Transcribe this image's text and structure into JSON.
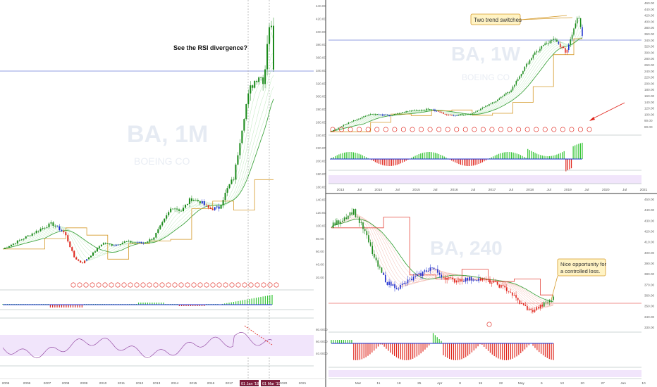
{
  "panels": {
    "monthly": {
      "watermark_symbol": "BA, 1M",
      "watermark_name": "BOEING CO",
      "annotation": "See the RSI divergence?",
      "x_ticks": [
        "2005",
        "2006",
        "2007",
        "2008",
        "2009",
        "2010",
        "2011",
        "2012",
        "2013",
        "2014",
        "2015",
        "2016",
        "2017",
        "2018",
        "2020",
        "2021"
      ],
      "y_ticks": [
        "440.00",
        "420.00",
        "400.00",
        "380.00",
        "360.00",
        "340.00",
        "320.00",
        "300.00",
        "280.00",
        "260.00",
        "240.00",
        "220.00",
        "200.00",
        "180.00",
        "160.00",
        "140.00",
        "120.00",
        "100.00",
        "80.00",
        "60.00",
        "40.00",
        "20.00"
      ],
      "date_badges": [
        "01 Jan '18",
        "01 Mar '19"
      ],
      "rsi_ticks": [
        "80.0000",
        "60.0000",
        "40.0000"
      ]
    },
    "weekly": {
      "watermark_symbol": "BA, 1W",
      "watermark_name": "BOEING CO",
      "annotation": "Two trend switches",
      "x_ticks": [
        "2013",
        "Jul",
        "2014",
        "Jul",
        "2015",
        "Jul",
        "2016",
        "Jul",
        "2017",
        "Jul",
        "2018",
        "Jul",
        "2019",
        "Jul",
        "2020",
        "Jul",
        "2021"
      ],
      "y_ticks": [
        "460.00",
        "440.00",
        "420.00",
        "400.00",
        "380.00",
        "360.00",
        "340.00",
        "320.00",
        "300.00",
        "280.00",
        "260.00",
        "240.00",
        "220.00",
        "200.00",
        "180.00",
        "160.00",
        "140.00",
        "120.00",
        "100.00",
        "90.00",
        "80.00"
      ]
    },
    "h4": {
      "watermark_symbol": "BA, 240",
      "annotation": "Nice opportunity for a controlled loss.",
      "annotation_line1": "Nice opportunity for",
      "annotation_line2": "a controlled loss.",
      "x_ticks": [
        "Mar",
        "11",
        "18",
        "25",
        "Apr",
        "8",
        "15",
        "22",
        "May",
        "6",
        "13",
        "20",
        "27",
        "Jun",
        "10"
      ],
      "y_ticks": [
        "450.00",
        "440.00",
        "430.00",
        "420.00",
        "410.00",
        "400.00",
        "390.00",
        "380.00",
        "370.00",
        "360.00",
        "350.00",
        "340.00",
        "330.00"
      ]
    }
  },
  "colors": {
    "bull": "#1b8a1b",
    "bear": "#e0241b",
    "blue": "#1a2ccf",
    "ma_green": "#2e9b2e",
    "ma_orange": "#d59a2a",
    "ma_red": "#e4443a",
    "note_fill": "#fff3c4",
    "note_border": "#d59a2a",
    "rsi_band": "#f1e5fb"
  },
  "chart_data": [
    {
      "type": "candlestick",
      "title": "BA, 1M",
      "x_range": [
        "2005",
        "2021"
      ],
      "ylim": [
        20,
        450
      ],
      "series": [
        {
          "name": "BA, 1M",
          "values": [
            [
              2005.0,
              62
            ],
            [
              2006.0,
              78
            ],
            [
              2007.0,
              95
            ],
            [
              2007.6,
              104
            ],
            [
              2008.3,
              88
            ],
            [
              2008.8,
              48
            ],
            [
              2009.2,
              38
            ],
            [
              2009.8,
              55
            ],
            [
              2010.3,
              72
            ],
            [
              2010.9,
              68
            ],
            [
              2011.5,
              74
            ],
            [
              2012.0,
              73
            ],
            [
              2012.5,
              72
            ],
            [
              2013.0,
              80
            ],
            [
              2013.5,
              105
            ],
            [
              2014.0,
              132
            ],
            [
              2014.5,
              125
            ],
            [
              2015.0,
              145
            ],
            [
              2015.5,
              140
            ],
            [
              2016.0,
              128
            ],
            [
              2016.5,
              130
            ],
            [
              2017.0,
              165
            ],
            [
              2017.3,
              180
            ],
            [
              2017.6,
              240
            ],
            [
              2017.9,
              295
            ],
            [
              2018.2,
              330
            ],
            [
              2018.6,
              350
            ],
            [
              2018.9,
              340
            ],
            [
              2019.1,
              420
            ],
            [
              2019.25,
              445
            ],
            [
              2019.4,
              365
            ]
          ]
        }
      ]
    },
    {
      "type": "candlestick",
      "title": "BA, 1W",
      "x_range": [
        "2013",
        "2021"
      ],
      "ylim": [
        80,
        460
      ],
      "series": [
        {
          "name": "BA, 1W",
          "values": [
            [
              2013.0,
              75
            ],
            [
              2013.5,
              105
            ],
            [
              2014.0,
              130
            ],
            [
              2014.5,
              125
            ],
            [
              2015.0,
              140
            ],
            [
              2015.5,
              145
            ],
            [
              2016.0,
              125
            ],
            [
              2016.5,
              130
            ],
            [
              2017.0,
              160
            ],
            [
              2017.5,
              200
            ],
            [
              2018.0,
              300
            ],
            [
              2018.3,
              340
            ],
            [
              2018.6,
              360
            ],
            [
              2018.9,
              320
            ],
            [
              2019.1,
              400
            ],
            [
              2019.2,
              440
            ],
            [
              2019.3,
              375
            ]
          ]
        }
      ]
    },
    {
      "type": "candlestick",
      "title": "BA, 240",
      "x_range": [
        "Mar",
        "Jun"
      ],
      "ylim": [
        330,
        450
      ],
      "series": [
        {
          "name": "BA, 240",
          "values": [
            [
              0,
              425
            ],
            [
              3,
              432
            ],
            [
              6,
              440
            ],
            [
              9,
              420
            ],
            [
              12,
              390
            ],
            [
              15,
              370
            ],
            [
              18,
              365
            ],
            [
              21,
              372
            ],
            [
              24,
              378
            ],
            [
              27,
              385
            ],
            [
              30,
              376
            ],
            [
              33,
              372
            ],
            [
              36,
              373
            ],
            [
              39,
              374
            ],
            [
              42,
              372
            ],
            [
              45,
              368
            ],
            [
              48,
              362
            ],
            [
              51,
              350
            ],
            [
              54,
              342
            ],
            [
              57,
              348
            ],
            [
              60,
              355
            ]
          ]
        }
      ]
    }
  ]
}
